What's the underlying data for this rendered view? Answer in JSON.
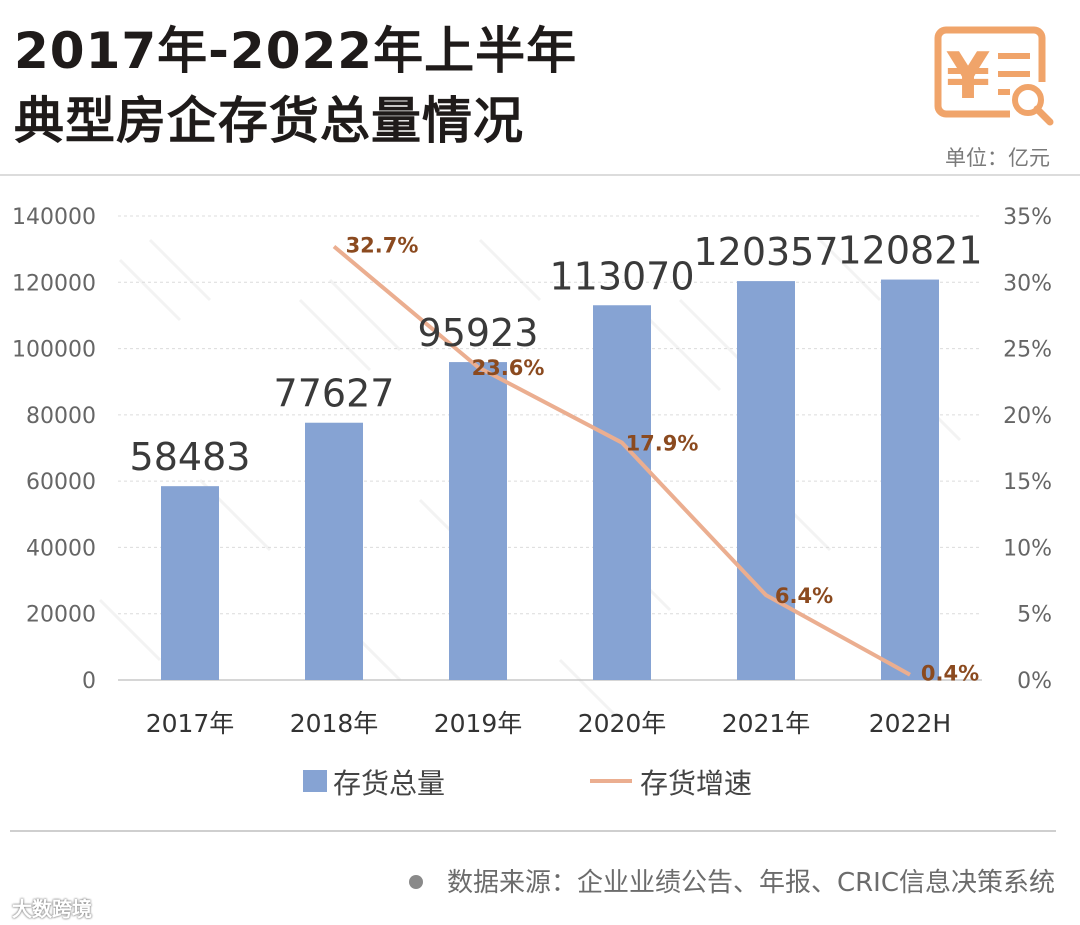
{
  "header": {
    "title_line1": "2017年-2022年上半年",
    "title_line2": "典型房企存货总量情况",
    "unit": "单位：亿元"
  },
  "icons": {
    "logo": "yen-receipt-search-icon"
  },
  "colors": {
    "bar": "#86A3D3",
    "line": "#EBAE90",
    "line_label": "#8B4A1F",
    "bar_label": "#3a3a3a",
    "accent": "#F0A46A"
  },
  "chart_data": {
    "type": "bar",
    "categories": [
      "2017年",
      "2018年",
      "2019年",
      "2020年",
      "2021年",
      "2022H"
    ],
    "series": [
      {
        "name": "存货总量",
        "type": "bar",
        "axis": "left",
        "values": [
          58483,
          77627,
          95923,
          113070,
          120357,
          120821
        ],
        "labels": [
          "58483",
          "77627",
          "95923",
          "113070",
          "120357",
          "120821"
        ]
      },
      {
        "name": "存货增速",
        "type": "line",
        "axis": "right",
        "values": [
          null,
          32.7,
          23.6,
          17.9,
          6.4,
          0.4
        ],
        "labels": [
          "",
          "32.7%",
          "23.6%",
          "17.9%",
          "6.4%",
          "0.4%"
        ]
      }
    ],
    "y_left": {
      "range": [
        0,
        140000
      ],
      "ticks": [
        "0",
        "20000",
        "40000",
        "60000",
        "80000",
        "100000",
        "120000",
        "140000"
      ]
    },
    "y_right": {
      "range": [
        0,
        35
      ],
      "ticks": [
        "0%",
        "5%",
        "10%",
        "15%",
        "20%",
        "25%",
        "30%",
        "35%"
      ]
    },
    "grid": true,
    "legend_position": "bottom"
  },
  "footer": {
    "source": "数据来源：企业业绩公告、年报、CRIC信息决策系统",
    "watermark": "大数跨境"
  }
}
